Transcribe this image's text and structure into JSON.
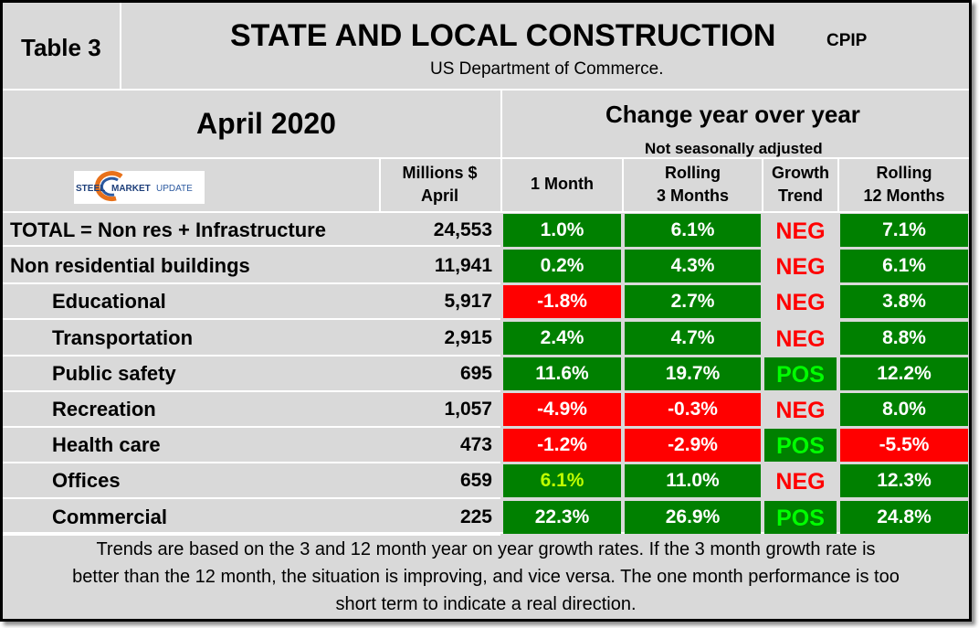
{
  "table_label": "Table 3",
  "title": "STATE AND LOCAL CONSTRUCTION",
  "title_tag": "CPIP",
  "subtitle": "US Department of Commerce.",
  "period": "April 2020",
  "change_header": "Change year over year",
  "adjustment_note": "Not seasonally adjusted",
  "logo": {
    "word1": "STEEL",
    "word2": "MARKET",
    "word3": "UPDATE"
  },
  "columns": {
    "millions_l1": "Millions $",
    "millions_l2": "April",
    "month1": "1 Month",
    "rolling3_l1": "Rolling",
    "rolling3_l2": "3 Months",
    "growth_l1": "Growth",
    "growth_l2": "Trend",
    "rolling12_l1": "Rolling",
    "rolling12_l2": "12 Months"
  },
  "colors": {
    "background": "#d9d9d9",
    "positive": "#008000",
    "negative": "#ff0000",
    "neg_text": "#ff0000",
    "pos_text": "#00ff00",
    "highlight_text": "#bfff00"
  },
  "chart_data": {
    "type": "table",
    "title": "STATE AND LOCAL CONSTRUCTION",
    "rows": [
      {
        "label": "TOTAL = Non res + Infrastructure",
        "millions": "24,553",
        "m1": "1.0%",
        "m1_v": 1.0,
        "r3": "6.1%",
        "r3_v": 6.1,
        "trend": "NEG",
        "r12": "7.1%",
        "r12_v": 7.1
      },
      {
        "label": "Non residential buildings",
        "millions": "11,941",
        "m1": "0.2%",
        "m1_v": 0.2,
        "r3": "4.3%",
        "r3_v": 4.3,
        "trend": "NEG",
        "r12": "6.1%",
        "r12_v": 6.1
      },
      {
        "label": "Educational",
        "millions": "5,917",
        "m1": "-1.8%",
        "m1_v": -1.8,
        "r3": "2.7%",
        "r3_v": 2.7,
        "trend": "NEG",
        "r12": "3.8%",
        "r12_v": 3.8
      },
      {
        "label": "Transportation",
        "millions": "2,915",
        "m1": "2.4%",
        "m1_v": 2.4,
        "r3": "4.7%",
        "r3_v": 4.7,
        "trend": "NEG",
        "r12": "8.8%",
        "r12_v": 8.8
      },
      {
        "label": "Public safety",
        "millions": "695",
        "m1": "11.6%",
        "m1_v": 11.6,
        "r3": "19.7%",
        "r3_v": 19.7,
        "trend": "POS",
        "r12": "12.2%",
        "r12_v": 12.2
      },
      {
        "label": "Recreation",
        "millions": "1,057",
        "m1": "-4.9%",
        "m1_v": -4.9,
        "r3": "-0.3%",
        "r3_v": -0.3,
        "trend": "NEG",
        "r12": "8.0%",
        "r12_v": 8.0
      },
      {
        "label": "Health care",
        "millions": "473",
        "m1": "-1.2%",
        "m1_v": -1.2,
        "r3": "-2.9%",
        "r3_v": -2.9,
        "trend": "POS",
        "r12": "-5.5%",
        "r12_v": -5.5
      },
      {
        "label": "Offices",
        "millions": "659",
        "m1": "6.1%",
        "m1_v": 6.1,
        "r3": "11.0%",
        "r3_v": 11.0,
        "trend": "NEG",
        "r12": "12.3%",
        "r12_v": 12.3,
        "m1_color": "#bfff00"
      },
      {
        "label": "Commercial",
        "millions": "225",
        "m1": "22.3%",
        "m1_v": 22.3,
        "r3": "26.9%",
        "r3_v": 26.9,
        "trend": "POS",
        "r12": "24.8%",
        "r12_v": 24.8
      }
    ]
  },
  "footnote_lines": [
    "Trends are based on the 3 and 12 month year on year growth rates. If the 3 month growth rate is",
    "better than the 12 month, the situation is improving, and vice versa. The one month performance is too",
    "short term to indicate a real direction."
  ]
}
